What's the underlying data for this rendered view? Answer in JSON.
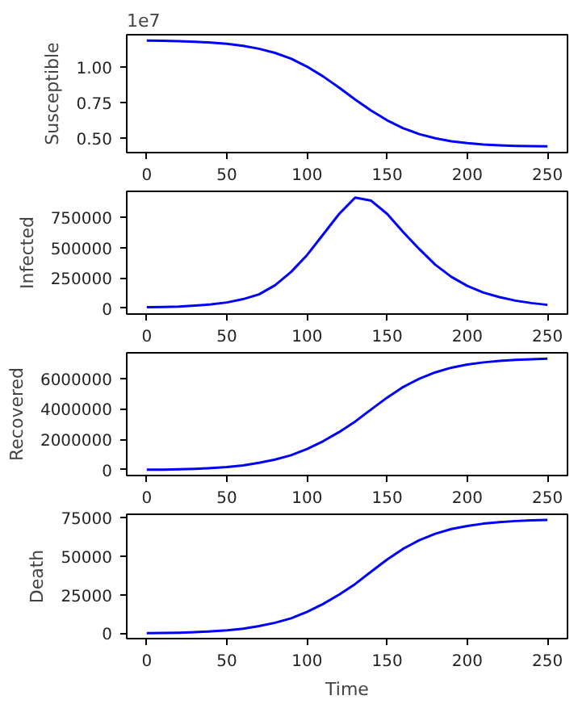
{
  "chart_data": [
    {
      "type": "line",
      "ylabel": "Susceptible",
      "annotations": [
        "1e7"
      ],
      "color": "#0000ff",
      "xlim": [
        -12.5,
        262.5
      ],
      "xticks": [
        0,
        50,
        100,
        150,
        200,
        250
      ],
      "ylim": [
        0.4,
        1.223
      ],
      "yticks": [
        {
          "value": 0.5,
          "label": "0.50"
        },
        {
          "value": 0.75,
          "label": "0.75"
        },
        {
          "value": 1.0,
          "label": "1.00"
        }
      ],
      "x": [
        0,
        10,
        20,
        30,
        40,
        50,
        60,
        70,
        80,
        90,
        100,
        110,
        120,
        130,
        140,
        150,
        160,
        170,
        180,
        190,
        200,
        210,
        220,
        230,
        240,
        250
      ],
      "values": [
        1.182,
        1.181,
        1.178,
        1.174,
        1.168,
        1.159,
        1.146,
        1.125,
        1.096,
        1.056,
        1.0,
        0.932,
        0.854,
        0.771,
        0.693,
        0.625,
        0.57,
        0.529,
        0.5,
        0.479,
        0.466,
        0.457,
        0.451,
        0.447,
        0.4445,
        0.443
      ]
    },
    {
      "type": "line",
      "ylabel": "Infected",
      "color": "#0000ff",
      "xlim": [
        -12.5,
        262.5
      ],
      "xticks": [
        0,
        50,
        100,
        150,
        200,
        250
      ],
      "ylim": [
        -48000,
        967000
      ],
      "yticks": [
        0,
        250000,
        500000,
        750000
      ],
      "x": [
        0,
        10,
        20,
        30,
        40,
        50,
        60,
        70,
        80,
        90,
        100,
        110,
        120,
        130,
        140,
        150,
        160,
        170,
        180,
        190,
        200,
        210,
        220,
        230,
        240,
        250
      ],
      "values": [
        8000,
        10000,
        14000,
        22000,
        32000,
        48000,
        75000,
        115000,
        190000,
        300000,
        440000,
        610000,
        780000,
        915000,
        890000,
        780000,
        630000,
        490000,
        360000,
        260000,
        185000,
        130000,
        92000,
        63000,
        43000,
        28000
      ]
    },
    {
      "type": "line",
      "ylabel": "Recovered",
      "color": "#0000ff",
      "xlim": [
        -12.5,
        262.5
      ],
      "xticks": [
        0,
        50,
        100,
        150,
        200,
        250
      ],
      "ylim": [
        -381000,
        7680000
      ],
      "yticks": [
        0,
        2000000,
        4000000,
        6000000
      ],
      "x": [
        0,
        10,
        20,
        30,
        40,
        50,
        60,
        70,
        80,
        90,
        100,
        110,
        120,
        130,
        140,
        150,
        160,
        170,
        180,
        190,
        200,
        210,
        220,
        230,
        240,
        250
      ],
      "values": [
        0,
        5000,
        26000,
        57000,
        107000,
        180000,
        282000,
        450000,
        663000,
        950000,
        1366000,
        1871000,
        2475000,
        3163000,
        3960000,
        4742000,
        5435000,
        5980000,
        6396000,
        6703000,
        6906000,
        7050000,
        7147000,
        7215000,
        7259000,
        7289000
      ]
    },
    {
      "type": "line",
      "ylabel": "Death",
      "xlabel": "Time",
      "color": "#0000ff",
      "xlim": [
        -12.5,
        262.5
      ],
      "xticks": [
        0,
        50,
        100,
        150,
        200,
        250
      ],
      "ylim": [
        -3600,
        77300
      ],
      "yticks": [
        0,
        25000,
        50000,
        75000
      ],
      "x": [
        0,
        10,
        20,
        30,
        40,
        50,
        60,
        70,
        80,
        90,
        100,
        110,
        120,
        130,
        140,
        150,
        160,
        170,
        180,
        190,
        200,
        210,
        220,
        230,
        240,
        250
      ],
      "values": [
        0,
        50,
        260,
        570,
        1080,
        1820,
        2850,
        4550,
        6700,
        9600,
        13800,
        18900,
        25000,
        31900,
        40000,
        47900,
        54900,
        60400,
        64600,
        67700,
        69700,
        71200,
        72200,
        72900,
        73300,
        73600
      ]
    }
  ]
}
